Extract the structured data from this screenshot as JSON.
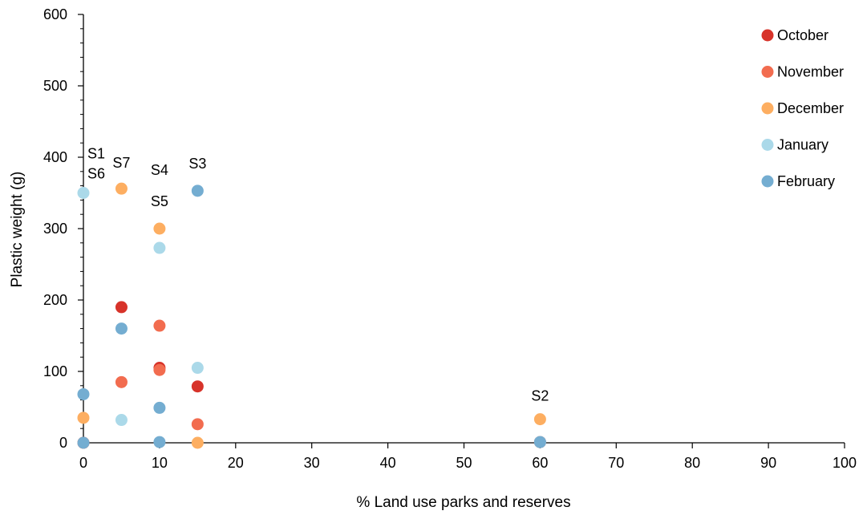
{
  "chart_data": {
    "type": "scatter",
    "title": "",
    "xlabel": "% Land use parks and reserves",
    "ylabel": "Plastic weight (g)",
    "xlim": [
      0,
      100
    ],
    "ylim": [
      0,
      600
    ],
    "xticks": [
      0,
      10,
      20,
      30,
      40,
      50,
      60,
      70,
      80,
      90,
      100
    ],
    "yticks": [
      0,
      100,
      200,
      300,
      400,
      500,
      600
    ],
    "grid": false,
    "legend_position": "top-right",
    "series": [
      {
        "name": "October",
        "color": "#D7332A",
        "points": [
          {
            "x": 0,
            "y": 0
          },
          {
            "x": 5,
            "y": 190
          },
          {
            "x": 10,
            "y": 105
          },
          {
            "x": 15,
            "y": 79
          },
          {
            "x": 60,
            "y": 1
          }
        ]
      },
      {
        "name": "November",
        "color": "#F26C4F",
        "points": [
          {
            "x": 0,
            "y": 0
          },
          {
            "x": 5,
            "y": 85
          },
          {
            "x": 10,
            "y": 164
          },
          {
            "x": 10,
            "y": 102
          },
          {
            "x": 15,
            "y": 26
          },
          {
            "x": 60,
            "y": 1
          }
        ]
      },
      {
        "name": "December",
        "color": "#FDAE61",
        "points": [
          {
            "x": 0,
            "y": 35
          },
          {
            "x": 5,
            "y": 356
          },
          {
            "x": 10,
            "y": 300
          },
          {
            "x": 15,
            "y": 0
          },
          {
            "x": 60,
            "y": 33
          }
        ]
      },
      {
        "name": "January",
        "color": "#ABD9E9",
        "points": [
          {
            "x": 0,
            "y": 350
          },
          {
            "x": 5,
            "y": 32
          },
          {
            "x": 10,
            "y": 273
          },
          {
            "x": 15,
            "y": 105
          },
          {
            "x": 60,
            "y": 1
          }
        ]
      },
      {
        "name": "February",
        "color": "#74ADD1",
        "points": [
          {
            "x": 0,
            "y": 68
          },
          {
            "x": 0,
            "y": 0
          },
          {
            "x": 5,
            "y": 160
          },
          {
            "x": 10,
            "y": 49
          },
          {
            "x": 10,
            "y": 1
          },
          {
            "x": 15,
            "y": 353
          },
          {
            "x": 60,
            "y": 1
          }
        ]
      }
    ],
    "annotations": [
      {
        "text": "S1",
        "x": 0,
        "y": 405
      },
      {
        "text": "S6",
        "x": 0,
        "y": 377
      },
      {
        "text": "S7",
        "x": 5,
        "y": 392
      },
      {
        "text": "S4",
        "x": 10,
        "y": 382
      },
      {
        "text": "S3",
        "x": 15,
        "y": 391
      },
      {
        "text": "S5",
        "x": 10,
        "y": 338
      },
      {
        "text": "S2",
        "x": 60,
        "y": 66
      }
    ]
  }
}
